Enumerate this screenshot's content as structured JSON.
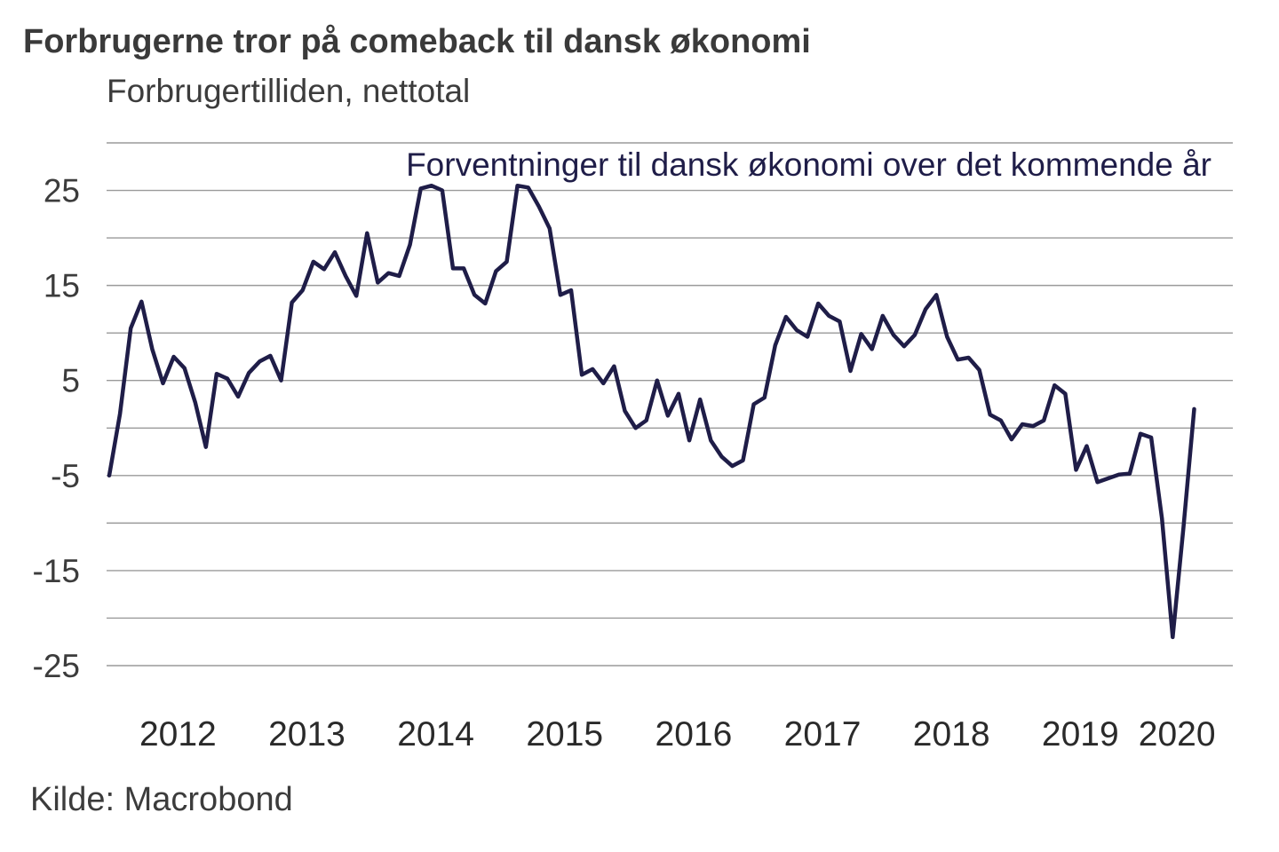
{
  "chart_data": {
    "type": "line",
    "title": "Forbrugerne tror på comeback til dansk økonomi",
    "subtitle": "Forbrugertilliden, nettotal",
    "source": "Kilde: Macrobond",
    "series_label": "Forventninger til dansk økonomi over det kommende år",
    "line_color": "#1f1d48",
    "grid_color": "#9a9a9a",
    "ylim": [
      -27,
      32
    ],
    "grid_values": [
      30,
      25,
      20,
      15,
      10,
      5,
      0,
      -5,
      -10,
      -15,
      -20,
      -25
    ],
    "y_ticks": [
      {
        "value": 25,
        "label": "25"
      },
      {
        "value": 15,
        "label": "15"
      },
      {
        "value": 5,
        "label": "5"
      },
      {
        "value": -5,
        "label": "-5"
      },
      {
        "value": -15,
        "label": "-15"
      },
      {
        "value": -25,
        "label": "-25"
      }
    ],
    "x_ticks": [
      {
        "t": 2012.45,
        "label": "2012"
      },
      {
        "t": 2013.45,
        "label": "2013"
      },
      {
        "t": 2014.45,
        "label": "2014"
      },
      {
        "t": 2015.45,
        "label": "2015"
      },
      {
        "t": 2016.45,
        "label": "2016"
      },
      {
        "t": 2017.45,
        "label": "2017"
      },
      {
        "t": 2018.45,
        "label": "2018"
      },
      {
        "t": 2019.45,
        "label": "2019"
      },
      {
        "t": 2020.2,
        "label": "2020"
      }
    ],
    "t_start": 2011.917,
    "t_step": 0.08333,
    "values": [
      -5.0,
      1.5,
      10.5,
      13.3,
      8.3,
      4.7,
      7.5,
      6.3,
      2.7,
      -2.0,
      5.7,
      5.2,
      3.3,
      5.8,
      7.0,
      7.6,
      5.0,
      13.2,
      14.5,
      17.5,
      16.7,
      18.5,
      16.0,
      13.9,
      20.5,
      15.3,
      16.3,
      16.0,
      19.3,
      25.2,
      25.5,
      25.0,
      16.8,
      16.8,
      14.0,
      13.1,
      16.5,
      17.5,
      25.5,
      25.3,
      23.3,
      21.0,
      14.0,
      14.5,
      5.6,
      6.2,
      4.7,
      6.5,
      1.8,
      0.0,
      0.8,
      5.0,
      1.3,
      3.6,
      -1.3,
      3.0,
      -1.3,
      -3.0,
      -4.0,
      -3.4,
      2.5,
      3.2,
      8.7,
      11.7,
      10.3,
      9.6,
      13.1,
      11.8,
      11.2,
      6.0,
      9.9,
      8.3,
      11.8,
      9.8,
      8.6,
      9.8,
      12.5,
      14.0,
      9.6,
      7.2,
      7.4,
      6.1,
      1.4,
      0.8,
      -1.2,
      0.4,
      0.2,
      0.8,
      4.5,
      3.6,
      -4.4,
      -1.9,
      -5.7,
      -5.3,
      -4.9,
      -4.8,
      -0.6,
      -1.0,
      -9.5,
      -22.0,
      -10.5,
      2.0
    ]
  }
}
